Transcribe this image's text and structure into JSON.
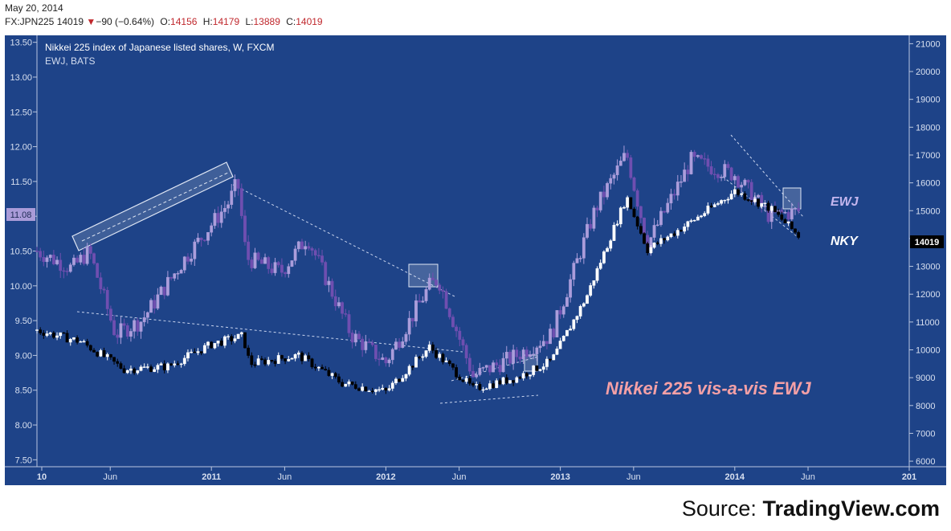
{
  "header": {
    "date": "May 20, 2014",
    "symbol": "FX:JPN225",
    "last": "14019",
    "change_icon": "down-triangle-icon",
    "change": "−90 (−0.64%)",
    "open_label": "O:",
    "open": "14156",
    "high_label": "H:",
    "high": "14179",
    "low_label": "L:",
    "low": "13889",
    "close_label": "C:",
    "close": "14019"
  },
  "legend": {
    "line1": "Nikkei 225 index of Japanese listed shares, W, FXCM",
    "line2": "EWJ, BATS"
  },
  "annotations": {
    "ewj": "EWJ",
    "nky": "NKY",
    "big_title": "Nikkei 225 vis-a-vis EWJ",
    "left_price_tag": "11.08",
    "right_price_tag": "14019"
  },
  "source": {
    "prefix": "Source: ",
    "brand": "TradingView.com"
  },
  "colors": {
    "background": "#1e4388",
    "nky_up": "#ffffff",
    "nky_down": "#000000",
    "ewj_up": "#ab9ddb",
    "ewj_down": "#6f4fb0",
    "title_pink": "#f4a0a6",
    "price_down": "#c0282d"
  },
  "chart_data": {
    "type": "candlestick",
    "title": "Nikkei 225 vis-a-vis EWJ",
    "x_ticks": [
      "10",
      "Jun",
      "2011",
      "Jun",
      "2012",
      "Jun",
      "2013",
      "Jun",
      "2014",
      "Jun",
      "201"
    ],
    "x_range": [
      "2010-01",
      "2015-01"
    ],
    "left_axis": {
      "ylim": [
        7.4,
        13.6
      ],
      "ticks": [
        "13.50",
        "13.00",
        "12.50",
        "12.00",
        "11.50",
        "11.00",
        "10.50",
        "10.00",
        "9.50",
        "9.00",
        "8.50",
        "8.00",
        "7.50"
      ]
    },
    "right_axis": {
      "ylim": [
        5800,
        21300
      ],
      "ticks": [
        "21000",
        "20000",
        "19000",
        "18000",
        "17000",
        "16000",
        "15000",
        "14000",
        "13000",
        "12000",
        "11000",
        "10000",
        "9000",
        "8000",
        "7000",
        "6000"
      ]
    },
    "series": [
      {
        "name": "NKY",
        "axis": "right",
        "x": [
          2010.0,
          2010.25,
          2010.5,
          2010.75,
          2011.0,
          2011.18,
          2011.22,
          2011.5,
          2011.75,
          2012.0,
          2012.25,
          2012.5,
          2012.75,
          2012.95,
          2013.15,
          2013.38,
          2013.5,
          2013.75,
          2014.0,
          2014.2,
          2014.38
        ],
        "close": [
          10700,
          10300,
          9300,
          9400,
          10200,
          10500,
          9500,
          9800,
          8800,
          8500,
          10100,
          8600,
          9000,
          9600,
          11900,
          15500,
          13600,
          14600,
          15700,
          15100,
          14019
        ]
      },
      {
        "name": "EWJ",
        "axis": "left",
        "x": [
          2010.0,
          2010.2,
          2010.3,
          2010.45,
          2010.6,
          2010.85,
          2011.1,
          2011.15,
          2011.2,
          2011.4,
          2011.55,
          2011.8,
          2012.0,
          2012.25,
          2012.3,
          2012.5,
          2012.75,
          2012.95,
          2013.2,
          2013.38,
          2013.5,
          2013.75,
          2014.0,
          2014.2,
          2014.38
        ],
        "close": [
          10.5,
          10.25,
          10.5,
          9.3,
          9.5,
          10.4,
          11.2,
          11.5,
          10.4,
          10.2,
          10.7,
          9.3,
          8.9,
          10.0,
          10.1,
          8.7,
          9.0,
          9.3,
          11.1,
          11.9,
          10.6,
          11.8,
          11.6,
          11.0,
          11.08
        ]
      }
    ],
    "labels": [
      "EWJ",
      "NKY"
    ]
  }
}
